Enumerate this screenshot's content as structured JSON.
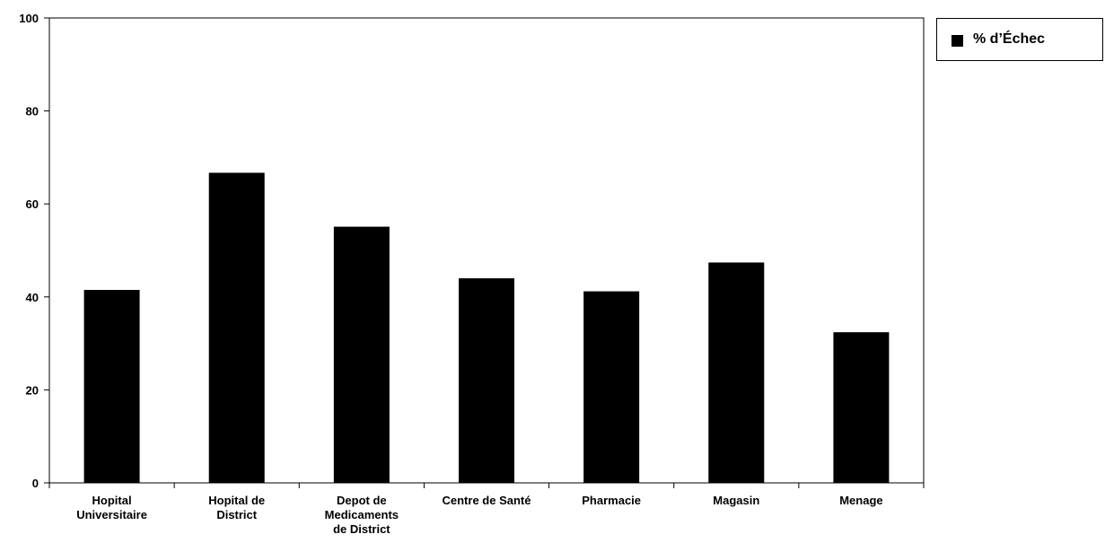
{
  "chart_data": {
    "type": "bar",
    "categories": [
      [
        "Hopital",
        "Universitaire"
      ],
      [
        "Hopital de",
        "District"
      ],
      [
        "Depot de",
        "Medicaments",
        "de District"
      ],
      [
        "Centre de Santé"
      ],
      [
        "Pharmacie"
      ],
      [
        "Magasin"
      ],
      [
        "Menage"
      ]
    ],
    "series": [
      {
        "name": "% d’Échec",
        "values": [
          41.5,
          66.7,
          55.1,
          44.0,
          41.2,
          47.4,
          32.4
        ],
        "color": "#000000"
      }
    ],
    "ylim": [
      0,
      100
    ],
    "yticks": [
      0,
      20,
      40,
      60,
      80,
      100
    ],
    "grid": false,
    "legend_placement": "top-right",
    "title": "",
    "xlabel": "",
    "ylabel": ""
  }
}
